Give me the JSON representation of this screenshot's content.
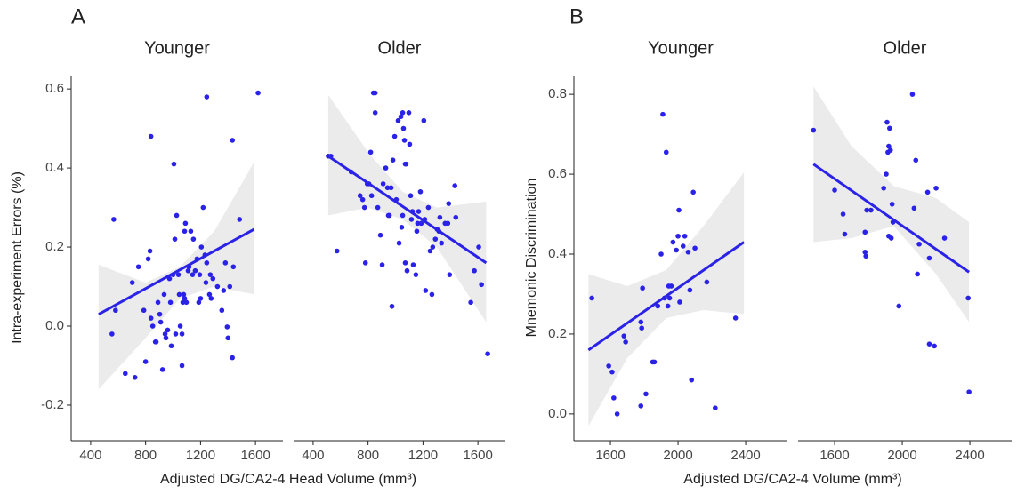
{
  "panels": [
    {
      "label": "A",
      "ylabel": "Intra-experiment Errors (%)",
      "xlabel": "Adjusted DG/CA2-4 Head Volume (mm³)"
    },
    {
      "label": "B",
      "ylabel": "Mnemonic Discrimination",
      "xlabel": "Adjusted DG/CA2-4 Volume (mm³)"
    }
  ],
  "chart_data": [
    {
      "type": "scatter",
      "title": "Younger",
      "color": "#2b22e8",
      "x": [
        555,
        581,
        652,
        703,
        723,
        748,
        787,
        800,
        819,
        832,
        839,
        852,
        871,
        877,
        890,
        903,
        910,
        923,
        935,
        942,
        948,
        961,
        974,
        981,
        987,
        1000,
        1013,
        1019,
        1026,
        1039,
        1045,
        1052,
        1065,
        1065,
        1071,
        1077,
        1084,
        1084,
        1090,
        1097,
        1110,
        1116,
        1129,
        1142,
        1148,
        1161,
        1174,
        1187,
        1200,
        1206,
        1219,
        1239,
        1245,
        1265,
        1271,
        1355,
        1368,
        1381,
        1394,
        1400,
        1413,
        1432,
        1439,
        1484,
        1245,
        1432,
        839,
        568,
        1619,
        1006,
        1232,
        1290,
        1323,
        1277,
        1194
      ],
      "values": [
        -0.02,
        0.04,
        -0.12,
        0.11,
        -0.13,
        0.15,
        0.04,
        -0.09,
        0.17,
        0.19,
        0.02,
        0.0,
        -0.04,
        -0.04,
        0.06,
        0.03,
        0.01,
        -0.11,
        0.08,
        -0.02,
        -0.03,
        -0.01,
        0.12,
        0.06,
        -0.05,
        0.13,
        0.22,
        -0.02,
        0.28,
        0.13,
        0.08,
        0.0,
        -0.1,
        -0.02,
        0.06,
        0.08,
        0.07,
        0.24,
        0.26,
        0.06,
        0.14,
        0.15,
        0.24,
        0.13,
        0.22,
        0.14,
        0.17,
        0.06,
        0.07,
        0.2,
        0.3,
        0.11,
        0.16,
        0.08,
        0.13,
        0.04,
        0.09,
        0.16,
        -0.002,
        -0.03,
        0.1,
        -0.08,
        0.15,
        0.27,
        0.58,
        0.47,
        0.48,
        0.27,
        0.59,
        0.41,
        0.18,
        0.12,
        0.1,
        0.07,
        0.13
      ],
      "fit": {
        "x": [
          458,
          1590
        ],
        "values": [
          0.03,
          0.245
        ]
      },
      "band": {
        "x": [
          458,
          800,
          1050,
          1300,
          1590
        ],
        "lower": [
          -0.16,
          -0.03,
          0.07,
          0.1,
          0.08
        ],
        "upper": [
          0.155,
          0.11,
          0.15,
          0.24,
          0.415
        ]
      },
      "xlim": [
        258,
        1800
      ],
      "xticks": [
        400,
        800,
        1200,
        1600
      ],
      "ylim": [
        -0.29,
        0.634
      ],
      "yticks": [
        {
          "value": -0.2,
          "label": "-0.2"
        },
        {
          "value": 0,
          "label": "0.0"
        },
        0.2,
        0.4,
        0.6
      ]
    },
    {
      "type": "scatter",
      "title": "Older",
      "color": "#2b22e8",
      "x": [
        510,
        529,
        574,
        677,
        742,
        761,
        774,
        781,
        794,
        806,
        819,
        826,
        839,
        852,
        852,
        871,
        890,
        903,
        910,
        929,
        942,
        948,
        955,
        968,
        974,
        981,
        994,
        1006,
        1019,
        1026,
        1039,
        1045,
        1052,
        1052,
        1058,
        1065,
        1071,
        1071,
        1077,
        1084,
        1097,
        1103,
        1110,
        1116,
        1123,
        1129,
        1148,
        1155,
        1161,
        1168,
        1181,
        1187,
        1206,
        1213,
        1219,
        1239,
        1252,
        1265,
        1271,
        1290,
        1303,
        1316,
        1323,
        1335,
        1361,
        1381,
        1387,
        1394,
        1432,
        1439,
        1548,
        1574,
        1606,
        1626,
        1671
      ],
      "values": [
        0.43,
        0.43,
        0.19,
        0.39,
        0.33,
        0.32,
        0.3,
        0.16,
        0.36,
        0.36,
        0.44,
        0.33,
        0.59,
        0.59,
        0.54,
        0.3,
        0.23,
        0.155,
        0.36,
        0.4,
        0.35,
        0.28,
        0.28,
        0.35,
        0.05,
        0.42,
        0.48,
        0.32,
        0.52,
        0.21,
        0.53,
        0.25,
        0.28,
        0.54,
        0.5,
        0.47,
        0.41,
        0.16,
        0.41,
        0.14,
        0.54,
        0.46,
        0.33,
        0.27,
        0.29,
        0.155,
        0.13,
        0.24,
        0.26,
        0.29,
        0.34,
        0.26,
        0.52,
        0.27,
        0.09,
        0.3,
        0.19,
        0.08,
        0.2,
        0.22,
        0.245,
        0.24,
        0.275,
        0.21,
        0.26,
        0.26,
        0.31,
        0.13,
        0.355,
        0.275,
        0.06,
        0.14,
        0.2,
        0.105,
        -0.07
      ],
      "fit": {
        "x": [
          510,
          1660
        ],
        "values": [
          0.43,
          0.16
        ]
      },
      "band": {
        "x": [
          510,
          800,
          1050,
          1300,
          1660
        ],
        "lower": [
          0.28,
          0.3,
          0.27,
          0.2,
          0.01
        ],
        "upper": [
          0.585,
          0.44,
          0.34,
          0.3,
          0.315
        ]
      },
      "xlim": [
        258,
        1800
      ],
      "xticks": [
        400,
        800,
        1200,
        1600
      ],
      "ylim": [
        -0.29,
        0.634
      ]
    },
    {
      "type": "scatter",
      "title": "Younger",
      "color": "#2b22e8",
      "x": [
        1490,
        1590,
        1610,
        1620,
        1640,
        1680,
        1690,
        1780,
        1785,
        1790,
        1780,
        1810,
        1850,
        1860,
        1880,
        1900,
        1910,
        1920,
        1930,
        1950,
        1960,
        1970,
        1990,
        2000,
        2005,
        2010,
        2030,
        2040,
        2060,
        2070,
        2080,
        2090,
        2100,
        2170,
        2220,
        2340,
        1940,
        1945
      ],
      "values": [
        0.29,
        0.12,
        0.105,
        0.04,
        0.0,
        0.195,
        0.18,
        0.23,
        0.215,
        0.315,
        0.02,
        0.05,
        0.13,
        0.13,
        0.27,
        0.4,
        0.75,
        0.29,
        0.655,
        0.29,
        0.32,
        0.43,
        0.41,
        0.445,
        0.51,
        0.28,
        0.42,
        0.445,
        0.405,
        0.31,
        0.085,
        0.555,
        0.415,
        0.33,
        0.015,
        0.24,
        0.27,
        0.32
      ],
      "fit": {
        "x": [
          1470,
          2390
        ],
        "values": [
          0.16,
          0.43
        ]
      },
      "band": {
        "x": [
          1470,
          1700,
          1930,
          2150,
          2390
        ],
        "lower": [
          -0.03,
          0.14,
          0.24,
          0.26,
          0.25
        ],
        "upper": [
          0.35,
          0.32,
          0.36,
          0.47,
          0.605
        ]
      },
      "xlim": [
        1384,
        2647
      ],
      "xticks": [
        1600,
        2000,
        2400
      ],
      "ylim": [
        -0.067,
        0.847
      ],
      "yticks": [
        {
          "value": 0,
          "label": "0.0"
        },
        0.2,
        0.4,
        0.6,
        0.8
      ]
    },
    {
      "type": "scatter",
      "title": "Older",
      "color": "#2b22e8",
      "x": [
        1475,
        1600,
        1650,
        1660,
        1780,
        1790,
        1815,
        1780,
        1785,
        1890,
        1905,
        1910,
        1925,
        1920,
        1915,
        1930,
        1940,
        1945,
        1920,
        1935,
        1980,
        2060,
        2080,
        2070,
        2090,
        2100,
        2150,
        2160,
        2160,
        2190,
        2200,
        2250,
        2390,
        2395
      ],
      "values": [
        0.71,
        0.56,
        0.5,
        0.45,
        0.455,
        0.51,
        0.51,
        0.405,
        0.395,
        0.565,
        0.6,
        0.73,
        0.715,
        0.67,
        0.655,
        0.66,
        0.525,
        0.48,
        0.445,
        0.44,
        0.27,
        0.8,
        0.635,
        0.515,
        0.35,
        0.425,
        0.555,
        0.39,
        0.175,
        0.17,
        0.565,
        0.44,
        0.29,
        0.055
      ],
      "fit": {
        "x": [
          1475,
          2395
        ],
        "values": [
          0.625,
          0.355
        ]
      },
      "band": {
        "x": [
          1475,
          1700,
          1950,
          2200,
          2395
        ],
        "lower": [
          0.43,
          0.44,
          0.47,
          0.35,
          0.23
        ],
        "upper": [
          0.82,
          0.67,
          0.57,
          0.54,
          0.48
        ]
      },
      "xlim": [
        1384,
        2647
      ],
      "xticks": [
        1600,
        2000,
        2400
      ],
      "ylim": [
        -0.067,
        0.847
      ]
    }
  ]
}
